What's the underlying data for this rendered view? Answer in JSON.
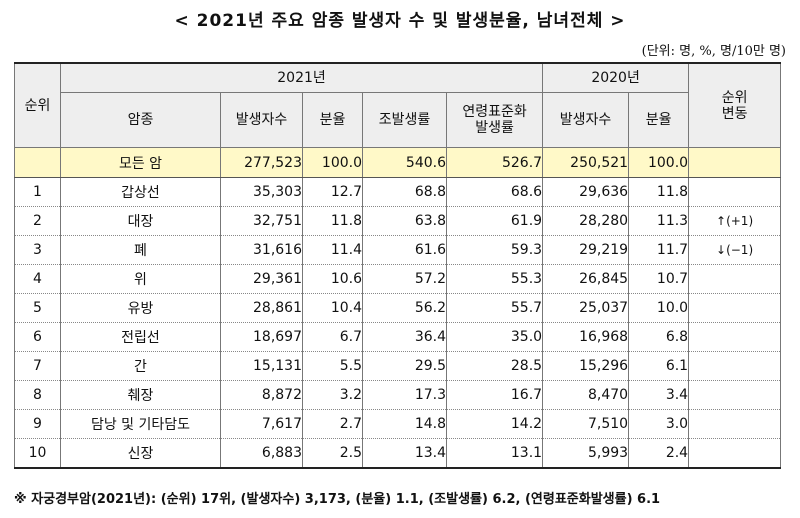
{
  "title": "< 2021년 주요 암종 발생자 수 및 발생분율, 남녀전체 >",
  "unit": "(단위: 명, %, 명/10만 명)",
  "headers": {
    "rank": "순위",
    "cancer": "암종",
    "year2021": "2021년",
    "year2020": "2020년",
    "rank_change": "순위\n변동",
    "cases": "발생자수",
    "share": "분율",
    "crude_rate": "조발생률",
    "asr": "연령표준화\n발생률",
    "cases_2020": "발생자수",
    "share_2020": "분율"
  },
  "total": {
    "name": "모든 암",
    "cases": "277,523",
    "share": "100.0",
    "crude": "540.6",
    "asr": "526.7",
    "cases_2020": "250,521",
    "share_2020": "100.0",
    "change": ""
  },
  "rows": [
    {
      "rank": "1",
      "name": "갑상선",
      "cases": "35,303",
      "share": "12.7",
      "crude": "68.8",
      "asr": "68.6",
      "cases_2020": "29,636",
      "share_2020": "11.8",
      "change": ""
    },
    {
      "rank": "2",
      "name": "대장",
      "cases": "32,751",
      "share": "11.8",
      "crude": "63.8",
      "asr": "61.9",
      "cases_2020": "28,280",
      "share_2020": "11.3",
      "change": "↑(+1)"
    },
    {
      "rank": "3",
      "name": "폐",
      "cases": "31,616",
      "share": "11.4",
      "crude": "61.6",
      "asr": "59.3",
      "cases_2020": "29,219",
      "share_2020": "11.7",
      "change": "↓(−1)"
    },
    {
      "rank": "4",
      "name": "위",
      "cases": "29,361",
      "share": "10.6",
      "crude": "57.2",
      "asr": "55.3",
      "cases_2020": "26,845",
      "share_2020": "10.7",
      "change": ""
    },
    {
      "rank": "5",
      "name": "유방",
      "cases": "28,861",
      "share": "10.4",
      "crude": "56.2",
      "asr": "55.7",
      "cases_2020": "25,037",
      "share_2020": "10.0",
      "change": ""
    },
    {
      "rank": "6",
      "name": "전립선",
      "cases": "18,697",
      "share": "6.7",
      "crude": "36.4",
      "asr": "35.0",
      "cases_2020": "16,968",
      "share_2020": "6.8",
      "change": ""
    },
    {
      "rank": "7",
      "name": "간",
      "cases": "15,131",
      "share": "5.5",
      "crude": "29.5",
      "asr": "28.5",
      "cases_2020": "15,296",
      "share_2020": "6.1",
      "change": ""
    },
    {
      "rank": "8",
      "name": "췌장",
      "cases": "8,872",
      "share": "3.2",
      "crude": "17.3",
      "asr": "16.7",
      "cases_2020": "8,470",
      "share_2020": "3.4",
      "change": ""
    },
    {
      "rank": "9",
      "name": "담낭 및 기타담도",
      "cases": "7,617",
      "share": "2.7",
      "crude": "14.8",
      "asr": "14.2",
      "cases_2020": "7,510",
      "share_2020": "3.0",
      "change": ""
    },
    {
      "rank": "10",
      "name": "신장",
      "cases": "6,883",
      "share": "2.5",
      "crude": "13.4",
      "asr": "13.1",
      "cases_2020": "5,993",
      "share_2020": "2.4",
      "change": ""
    }
  ],
  "note": "※ 자궁경부암(2021년): (순위) 17위, (발생자수) 3,173, (분율) 1.1, (조발생률) 6.2, (연령표준화발생률) 6.1",
  "colors": {
    "header_bg": "#eeeeee",
    "total_row_bg": "#fff9c8"
  }
}
